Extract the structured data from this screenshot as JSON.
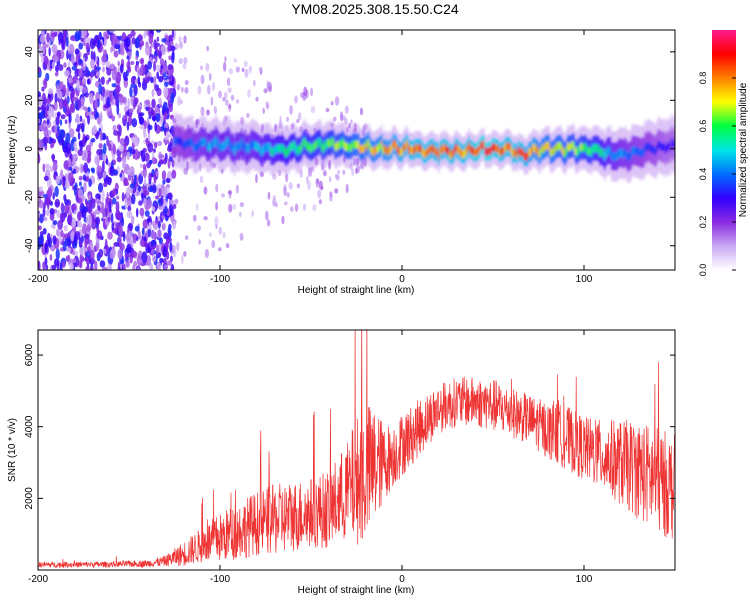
{
  "chart_data": [
    {
      "type": "heatmap",
      "title": "YM08.2025.308.15.50.C24",
      "xlabel": "Height of straight line (km)",
      "ylabel": "Frequency (Hz)",
      "xlim": [
        -200,
        150
      ],
      "ylim": [
        -50,
        49
      ],
      "xticks": [
        -200,
        -100,
        0,
        100
      ],
      "yticks": [
        -40,
        -20,
        0,
        20,
        40
      ],
      "colorbar": {
        "label": "Normalized spectral amplitude",
        "range": [
          0.0,
          1.0
        ],
        "ticks": [
          0.0,
          0.2,
          0.4,
          0.6,
          0.8
        ],
        "colors": [
          "#ffffff",
          "#c9a8f5",
          "#8a2be2",
          "#3000ff",
          "#0070ff",
          "#00e5e5",
          "#00ff40",
          "#ffff00",
          "#ff8000",
          "#ff0000",
          "#ff1a8c"
        ]
      },
      "ridge": {
        "x": [
          -125,
          -115,
          -105,
          -95,
          -85,
          -75,
          -65,
          -55,
          -45,
          -35,
          -25,
          -15,
          -5,
          5,
          15,
          25,
          35,
          45,
          55,
          65,
          75,
          85,
          95,
          105,
          115,
          125,
          135,
          145
        ],
        "freq": [
          3,
          2,
          2,
          1,
          1,
          0,
          0,
          1,
          2,
          2,
          1,
          0,
          0,
          0,
          -1,
          -1,
          -1,
          0,
          0,
          -2,
          0,
          0,
          0,
          0,
          -3,
          -2,
          0,
          1
        ],
        "amplitude": [
          0.35,
          0.4,
          0.45,
          0.45,
          0.45,
          0.5,
          0.55,
          0.6,
          0.6,
          0.65,
          0.7,
          0.75,
          0.8,
          0.85,
          0.85,
          0.85,
          0.85,
          0.9,
          0.85,
          0.85,
          0.75,
          0.7,
          0.65,
          0.6,
          0.45,
          0.4,
          0.35,
          0.3
        ]
      },
      "noise_region": {
        "x": [
          -200,
          -125
        ],
        "amplitude": 0.25
      }
    },
    {
      "type": "line",
      "title": "",
      "xlabel": "Height of straight line (km)",
      "ylabel": "SNR (10 * v/v)",
      "xlim": [
        -200,
        150
      ],
      "ylim": [
        0,
        6700
      ],
      "xticks": [
        -200,
        -100,
        0,
        100
      ],
      "yticks": [
        2000,
        4000,
        6000
      ],
      "color": "#ee3333",
      "series": [
        {
          "x": [
            -200,
            -180,
            -160,
            -140,
            -130,
            -120,
            -110,
            -100,
            -90,
            -80,
            -70,
            -60,
            -50,
            -40,
            -30,
            -25,
            -20,
            -15,
            -10,
            -5,
            0,
            10,
            20,
            30,
            40,
            50,
            60,
            70,
            80,
            90,
            100,
            110,
            120,
            130,
            140,
            150
          ],
          "y": [
            150,
            150,
            160,
            180,
            250,
            450,
            700,
            900,
            1100,
            1300,
            1400,
            1500,
            1600,
            1700,
            2200,
            2500,
            2700,
            2900,
            3000,
            3200,
            3500,
            4000,
            4500,
            4700,
            4700,
            4600,
            4400,
            4200,
            3900,
            3700,
            3400,
            3200,
            3000,
            2800,
            2500,
            2300
          ],
          "spread": [
            80,
            80,
            80,
            100,
            150,
            350,
            500,
            700,
            800,
            900,
            1000,
            1000,
            1000,
            1100,
            1400,
            1800,
            2000,
            1700,
            1100,
            900,
            900,
            800,
            700,
            700,
            700,
            750,
            700,
            700,
            800,
            900,
            900,
            1000,
            1200,
            1400,
            1500,
            1500
          ]
        }
      ]
    }
  ]
}
